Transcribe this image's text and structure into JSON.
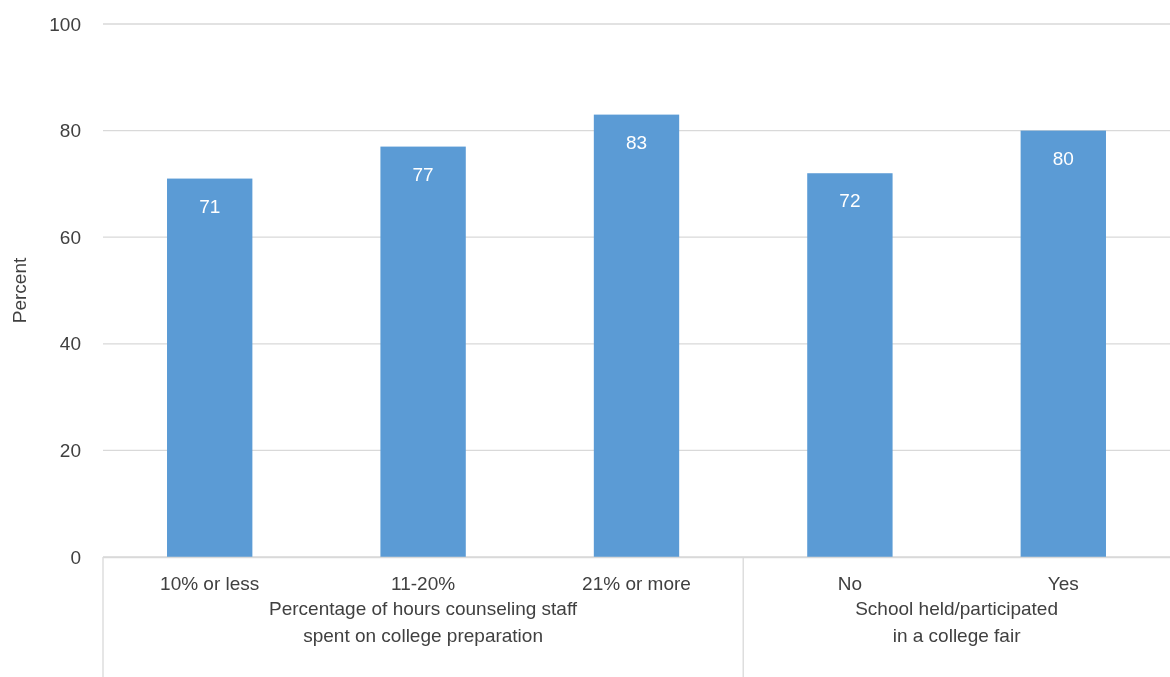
{
  "chart_data": {
    "type": "bar",
    "ylabel": "Percent",
    "categories": [
      "10% or less",
      "11-20%",
      "21% or more",
      "No",
      "Yes"
    ],
    "values": [
      71,
      77,
      83,
      72,
      80
    ],
    "color": "#5b9bd5",
    "ylim": [
      0,
      100
    ],
    "yticks": [
      0,
      20,
      40,
      60,
      80,
      100
    ],
    "grid": "y",
    "data_labels": true,
    "annotations": [
      "Percentage of hours counseling staff\nspent on college preparation",
      "School held/participated\nin a college fair"
    ]
  }
}
